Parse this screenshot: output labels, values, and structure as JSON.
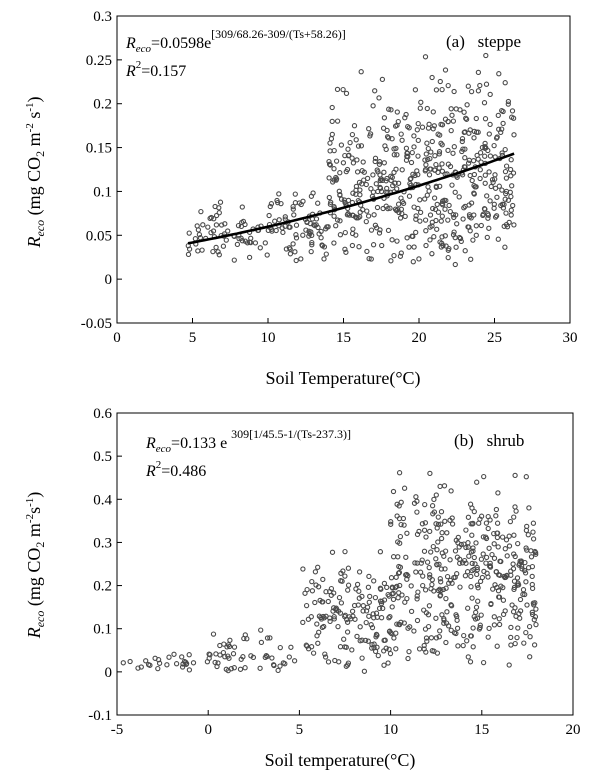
{
  "chart_data": [
    {
      "type": "scatter",
      "panel_label": "(a)   steppe",
      "xlabel": "Soil Temperature(°C)",
      "ylabel": {
        "main": "R",
        "sub": "eco",
        "units_open": " (mg CO",
        "units_co2_sub": "2",
        "units_m": " m",
        "units_m_sup": "-2",
        "units_s": " s",
        "units_s_sup": "-1",
        "units_close": ")"
      },
      "xlim": [
        0,
        30
      ],
      "ylim": [
        -0.05,
        0.3
      ],
      "xticks": [
        0,
        5,
        10,
        15,
        20,
        25,
        30
      ],
      "xtick_labels": [
        "0",
        "5",
        "10",
        "15",
        "20",
        "25",
        "30"
      ],
      "yticks": [
        -0.05,
        0,
        0.05,
        0.1,
        0.15,
        0.2,
        0.25,
        0.3
      ],
      "ytick_labels": [
        "-0.05",
        "0",
        "0.05",
        "0.1",
        "0.15",
        "0.2",
        "0.25",
        "0.3"
      ],
      "equation": {
        "lhs": "R",
        "lhs_sub": "eco",
        "rhs": "=0.0598e",
        "exponent": "[309/68.26-309/(Ts+58.26)]"
      },
      "r2": {
        "label": "R",
        "sup": "2",
        "value": "=0.157"
      },
      "fit": {
        "a": 0.0598,
        "E0": 309,
        "Tref_term": 68.26,
        "T0": -58.26,
        "x_range": [
          4.7,
          26.3
        ]
      },
      "scatter_summary": {
        "n_points_approx": 700,
        "x_range": [
          4.7,
          26.3
        ],
        "y_range": [
          0.01,
          0.26
        ],
        "bands": [
          {
            "x_from": 4.7,
            "x_to": 10,
            "y_low": 0.02,
            "y_high": 0.09
          },
          {
            "x_from": 10,
            "x_to": 14,
            "y_low": 0.015,
            "y_high": 0.12
          },
          {
            "x_from": 14,
            "x_to": 20,
            "y_low": 0.015,
            "y_high": 0.24
          },
          {
            "x_from": 20,
            "x_to": 26.3,
            "y_low": 0.015,
            "y_high": 0.26
          }
        ]
      },
      "marker_color": "#4a4a4a",
      "line_color": "#000000"
    },
    {
      "type": "scatter",
      "panel_label": "(b)   shrub",
      "xlabel": "Soil temperature(°C)",
      "ylabel": {
        "main": "R",
        "sub": "eco",
        "units_open": " (mg CO",
        "units_co2_sub": "2",
        "units_m": " m",
        "units_m_sup": "-2",
        "units_s": "s",
        "units_s_sup": "-1",
        "units_close": ")"
      },
      "xlim": [
        -5,
        20
      ],
      "ylim": [
        -0.1,
        0.6
      ],
      "xticks": [
        -5,
        0,
        5,
        10,
        15,
        20
      ],
      "xtick_labels": [
        "-5",
        "0",
        "5",
        "10",
        "15",
        "20"
      ],
      "yticks": [
        -0.1,
        0,
        0.1,
        0.2,
        0.3,
        0.4,
        0.5,
        0.6
      ],
      "ytick_labels": [
        "-0.1",
        "0",
        "0.1",
        "0.2",
        "0.3",
        "0.4",
        "0.5",
        "0.6"
      ],
      "equation": {
        "lhs": "R",
        "lhs_sub": "eco",
        "rhs": "=0.133 e",
        "exponent": "309[1/45.5-1/(Ts-237.3)]"
      },
      "r2": {
        "label": "R",
        "sup": "2",
        "value": "=0.486"
      },
      "fit": {
        "a": 0.133,
        "E0": 309,
        "Tref_term": 45.5,
        "T0": 237.3,
        "x_range": [
          -5,
          18.2
        ]
      },
      "scatter_summary": {
        "n_points_approx": 650,
        "x_range": [
          -5,
          18
        ],
        "y_range": [
          0.0,
          0.5
        ],
        "bands": [
          {
            "x_from": -5,
            "x_to": 0,
            "y_low": 0.0,
            "y_high": 0.05
          },
          {
            "x_from": 0,
            "x_to": 5,
            "y_low": 0.0,
            "y_high": 0.1
          },
          {
            "x_from": 5,
            "x_to": 10,
            "y_low": 0.0,
            "y_high": 0.3
          },
          {
            "x_from": 10,
            "x_to": 18,
            "y_low": 0.01,
            "y_high": 0.5
          }
        ]
      },
      "marker_color": "#4a4a4a",
      "line_color": "#000000"
    }
  ]
}
